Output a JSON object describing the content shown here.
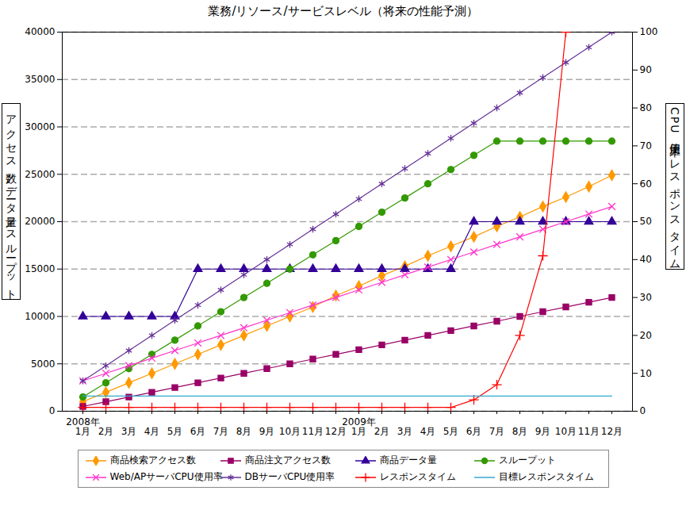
{
  "chart_data": {
    "type": "line",
    "title": "業務/リソース/サービスレベル（将来の性能予測）",
    "y_label": "アクセス数／データ量／スループット",
    "y2_label": "CPU使用率／レスポンスタイム",
    "categories": [
      "1月",
      "2月",
      "3月",
      "4月",
      "5月",
      "6月",
      "7月",
      "8月",
      "9月",
      "10月",
      "11月",
      "12月",
      "1月",
      "2月",
      "3月",
      "4月",
      "5月",
      "6月",
      "7月",
      "8月",
      "9月",
      "10月",
      "11月",
      "12月"
    ],
    "year_labels": [
      "2008年",
      null,
      null,
      null,
      null,
      null,
      null,
      null,
      null,
      null,
      null,
      null,
      "2009年",
      null,
      null,
      null,
      null,
      null,
      null,
      null,
      null,
      null,
      null,
      null
    ],
    "ylim": [
      0,
      40000
    ],
    "yticks": [
      0,
      5000,
      10000,
      15000,
      20000,
      25000,
      30000,
      35000,
      40000
    ],
    "y2lim": [
      0,
      100
    ],
    "y2ticks": [
      0,
      10,
      20,
      30,
      40,
      50,
      60,
      70,
      80,
      90,
      100
    ],
    "grid": true,
    "legend": "bottom",
    "series": [
      {
        "name": "商品検索アクセス数",
        "color": "#ff9900",
        "marker": "diamond",
        "values": [
          1000,
          2000,
          3000,
          4000,
          5000,
          6000,
          7000,
          8000,
          9000,
          10000,
          11000,
          12200,
          13200,
          14300,
          15300,
          16400,
          17400,
          18400,
          19500,
          20500,
          21600,
          22600,
          23700,
          24900
        ]
      },
      {
        "name": "商品注文アクセス数",
        "color": "#990066",
        "marker": "square",
        "values": [
          500,
          1000,
          1500,
          2000,
          2500,
          3000,
          3500,
          4000,
          4500,
          5000,
          5500,
          6000,
          6500,
          7000,
          7500,
          8000,
          8500,
          9000,
          9500,
          10000,
          10500,
          11000,
          11500,
          12000
        ]
      },
      {
        "name": "商品データ量",
        "color": "#330099",
        "marker": "triangle",
        "values": [
          10000,
          10000,
          10000,
          10000,
          10000,
          15000,
          15000,
          15000,
          15000,
          15000,
          15000,
          15000,
          15000,
          15000,
          15000,
          15000,
          15000,
          20000,
          20000,
          20000,
          20000,
          20000,
          20000,
          20000
        ]
      },
      {
        "name": "スループット",
        "color": "#339900",
        "marker": "circle",
        "values": [
          1500,
          3000,
          4500,
          6000,
          7500,
          9000,
          10500,
          12000,
          13500,
          15000,
          16500,
          18000,
          19500,
          21000,
          22500,
          24000,
          25500,
          27000,
          28500,
          28500,
          28500,
          28500,
          28500,
          28500
        ]
      },
      {
        "name": "Web/APサーバCPU使用率",
        "color": "#ff33cc",
        "marker": "times",
        "axis": "y2",
        "values": [
          8,
          10,
          12,
          14,
          16,
          18,
          20,
          22,
          24,
          26,
          28,
          30,
          32,
          34,
          36,
          38,
          40,
          42,
          44,
          46,
          48,
          50,
          52,
          54
        ]
      },
      {
        "name": "DBサーバCPU使用率",
        "color": "#663399",
        "marker": "asterisk",
        "axis": "y2",
        "values": [
          8,
          12,
          16,
          20,
          24,
          28,
          32,
          36,
          40,
          44,
          48,
          52,
          56,
          60,
          64,
          68,
          72,
          76,
          80,
          84,
          88,
          92,
          96,
          100
        ]
      },
      {
        "name": "レスポンスタイム",
        "color": "#ff0000",
        "marker": "plus",
        "axis": "y2",
        "values": [
          1,
          1,
          1,
          1,
          1,
          1,
          1,
          1,
          1,
          1,
          1,
          1,
          1,
          1,
          1,
          1,
          1,
          3,
          7,
          20,
          41,
          100,
          null,
          null
        ]
      },
      {
        "name": "目標レスポンスタイム",
        "color": "#33aacc",
        "marker": "none",
        "axis": "y2",
        "values": [
          4,
          4,
          4,
          4,
          4,
          4,
          4,
          4,
          4,
          4,
          4,
          4,
          4,
          4,
          4,
          4,
          4,
          4,
          4,
          4,
          4,
          4,
          4,
          4
        ]
      }
    ]
  }
}
